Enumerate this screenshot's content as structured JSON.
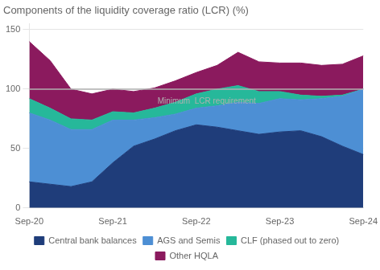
{
  "chart_data": {
    "type": "area",
    "title": "Components of the liquidity coverage ratio (LCR) (%)",
    "categories": [
      "Sep-20",
      null,
      null,
      null,
      "Sep-21",
      null,
      null,
      null,
      "Sep-22",
      null,
      null,
      null,
      "Sep-23",
      null,
      null,
      null,
      "Sep-24"
    ],
    "series": [
      {
        "name": "Central bank balances",
        "color": "#1f3d7a",
        "values": [
          22,
          20,
          18,
          22,
          38,
          52,
          58,
          65,
          70,
          68,
          65,
          62,
          64,
          65,
          60,
          52,
          45
        ]
      },
      {
        "name": "AGS and Semis",
        "color": "#4d8fd4",
        "values": [
          58,
          54,
          48,
          44,
          36,
          22,
          18,
          14,
          14,
          18,
          24,
          26,
          28,
          26,
          32,
          42,
          55
        ]
      },
      {
        "name": "CLF (phased out to zero)",
        "color": "#26b89a",
        "values": [
          12,
          10,
          9,
          8,
          7,
          6,
          8,
          10,
          12,
          14,
          14,
          10,
          6,
          4,
          2,
          1,
          0
        ]
      },
      {
        "name": "Other HQLA",
        "color": "#8b1a5e",
        "values": [
          48,
          40,
          25,
          22,
          19,
          18,
          17,
          18,
          18,
          20,
          28,
          25,
          24,
          27,
          26,
          26,
          28
        ]
      }
    ],
    "stacked": true,
    "ylim": [
      0,
      155
    ],
    "yticks": [
      0,
      50,
      100,
      150
    ],
    "grid": true,
    "legend": "bottom",
    "annotations": [
      {
        "type": "hline",
        "y": 100,
        "color": "#b0b0b0"
      },
      {
        "type": "text",
        "text": "Minimum  LCR requirement",
        "x": 8.5,
        "y": 93,
        "color": "#b0b0b0"
      }
    ]
  }
}
